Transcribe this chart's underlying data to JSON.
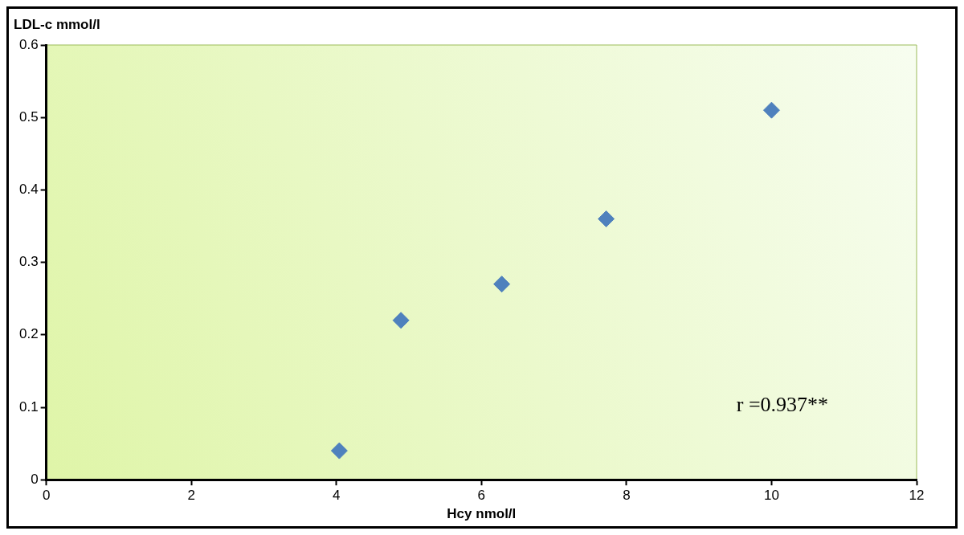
{
  "chart_data": {
    "type": "scatter",
    "xlabel": "Hcy nmol/l",
    "ylabel": "LDL-c mmol/l",
    "x": [
      4.04,
      4.89,
      6.28,
      7.72,
      10
    ],
    "values": [
      0.04,
      0.22,
      0.27,
      0.36,
      0.51
    ],
    "color": "#4f81bd",
    "marker": "diamond",
    "xlim": [
      0,
      12
    ],
    "xticks": [
      0,
      2,
      4,
      6,
      8,
      10,
      12
    ],
    "ylim": [
      0,
      0.6
    ],
    "yticks": [
      0,
      0.1,
      0.2,
      0.3,
      0.4,
      0.5,
      0.6
    ],
    "annotations": [
      "r =0.937**"
    ]
  }
}
